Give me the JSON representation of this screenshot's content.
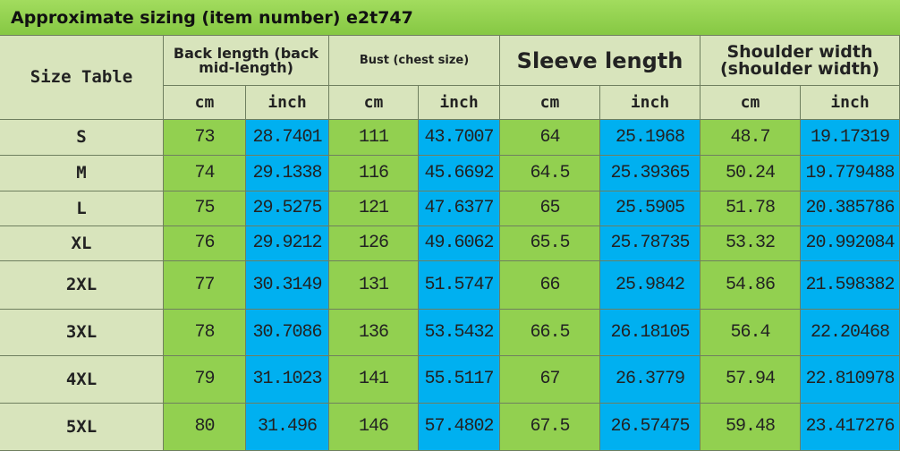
{
  "title": "Approximate sizing (item number) e2t747",
  "table": {
    "corner": "Size Table",
    "groups": [
      {
        "label": "Back length (back mid-length)",
        "units": [
          "cm",
          "inch"
        ]
      },
      {
        "label": "Bust (chest size)",
        "units": [
          "cm",
          "inch"
        ]
      },
      {
        "label": "Sleeve length",
        "units": [
          "cm",
          "inch"
        ]
      },
      {
        "label": "Shoulder width (shoulder width)",
        "units": [
          "cm",
          "inch"
        ]
      }
    ],
    "rows": [
      [
        "S",
        "73",
        "28.7401",
        "111",
        "43.7007",
        "64",
        "25.1968",
        "48.7",
        "19.17319"
      ],
      [
        "M",
        "74",
        "29.1338",
        "116",
        "45.6692",
        "64.5",
        "25.39365",
        "50.24",
        "19.779488"
      ],
      [
        "L",
        "75",
        "29.5275",
        "121",
        "47.6377",
        "65",
        "25.5905",
        "51.78",
        "20.385786"
      ],
      [
        "XL",
        "76",
        "29.9212",
        "126",
        "49.6062",
        "65.5",
        "25.78735",
        "53.32",
        "20.992084"
      ],
      [
        "2XL",
        "77",
        "30.3149",
        "131",
        "51.5747",
        "66",
        "25.9842",
        "54.86",
        "21.598382"
      ],
      [
        "3XL",
        "78",
        "30.7086",
        "136",
        "53.5432",
        "66.5",
        "26.18105",
        "56.4",
        "22.20468"
      ],
      [
        "4XL",
        "79",
        "31.1023",
        "141",
        "55.5117",
        "67",
        "26.3779",
        "57.94",
        "22.810978"
      ],
      [
        "5XL",
        "80",
        "31.496",
        "146",
        "57.4802",
        "67.5",
        "26.57475",
        "59.48",
        "23.417276"
      ]
    ]
  }
}
